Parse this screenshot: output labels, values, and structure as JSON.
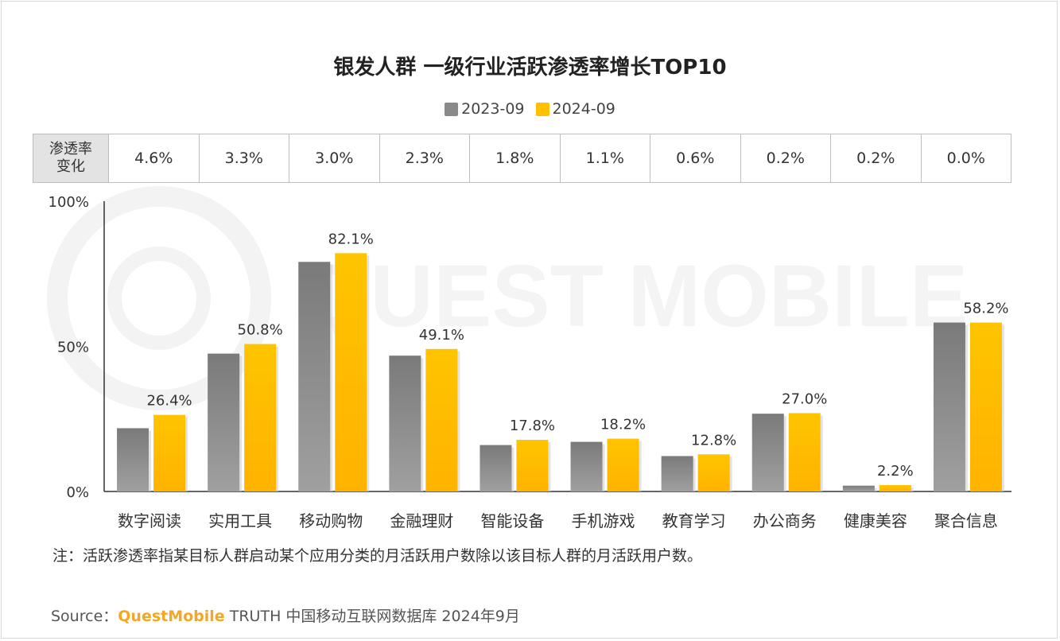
{
  "title": "银发人群 一级行业活跃渗透率增长TOP10",
  "legend": [
    {
      "name": "2023-09",
      "color": "#8a8a8a"
    },
    {
      "name": "2024-09",
      "color": "#ffc000"
    }
  ],
  "delta_table": {
    "label": "渗透率\n变化",
    "values": [
      "4.6%",
      "3.3%",
      "3.0%",
      "2.3%",
      "1.8%",
      "1.1%",
      "0.6%",
      "0.2%",
      "0.2%",
      "0.0%"
    ]
  },
  "chart_data": {
    "type": "bar",
    "title": "银发人群 一级行业活跃渗透率增长TOP10",
    "categories": [
      "数字阅读",
      "实用工具",
      "移动购物",
      "金融理财",
      "智能设备",
      "手机游戏",
      "教育学习",
      "办公商务",
      "健康美容",
      "聚合信息"
    ],
    "series": [
      {
        "name": "2023-09",
        "values": [
          21.8,
          47.5,
          79.1,
          46.8,
          16.0,
          17.1,
          12.2,
          26.8,
          2.0,
          58.2
        ]
      },
      {
        "name": "2024-09",
        "values": [
          26.4,
          50.8,
          82.1,
          49.1,
          17.8,
          18.2,
          12.8,
          27.0,
          2.2,
          58.2
        ]
      }
    ],
    "data_labels": [
      "26.4%",
      "50.8%",
      "82.1%",
      "49.1%",
      "17.8%",
      "18.2%",
      "12.8%",
      "27.0%",
      "2.2%",
      "58.2%"
    ],
    "y_ticks": [
      "0%",
      "50%",
      "100%"
    ],
    "ylim": [
      0,
      100
    ],
    "grid": false,
    "legend_position": "top-center",
    "colors": {
      "s2023": "#8a8a8a",
      "s2024": "#ffc000"
    }
  },
  "note": "注：活跃渗透率指某目标人群启动某个应用分类的月活跃用户数除以该目标人群的月活跃用户数。",
  "source": {
    "prefix": "Source：",
    "brand": "QuestMobile",
    "suffix": " TRUTH 中国移动互联网数据库 2024年9月"
  },
  "watermark": "QUEST MOBILE"
}
